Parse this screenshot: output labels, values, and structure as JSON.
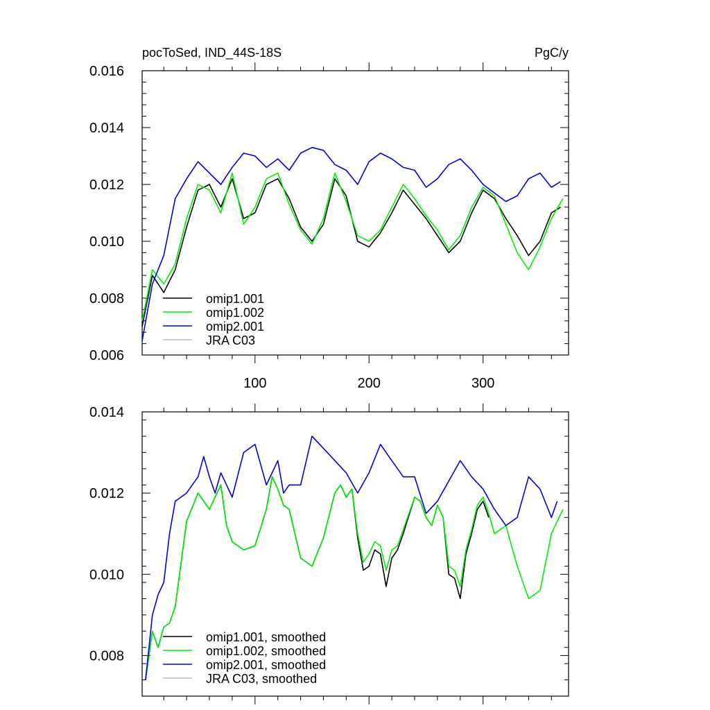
{
  "colors": {
    "omip1_001": "#000000",
    "omip1_002": "#00ee00",
    "omip2_001": "#0000dd",
    "jra_c03": "#bbbbbb"
  },
  "chart_data": [
    {
      "type": "line",
      "title_left": "pocToSed, IND_44S-18S",
      "title_right": "PgC/y",
      "xlim": [
        1,
        375
      ],
      "ylim": [
        0.006,
        0.016
      ],
      "yticks": [
        0.006,
        0.008,
        0.01,
        0.012,
        0.014,
        0.016
      ],
      "ytick_labels": [
        "0.006",
        "0.008",
        "0.010",
        "0.012",
        "0.014",
        "0.016"
      ],
      "xticks": [
        100,
        200,
        300
      ],
      "xtick_labels": [
        "100",
        "200",
        "300"
      ],
      "legend": [
        "omip1.001",
        "omip1.002",
        "omip2.001",
        "JRA C03"
      ],
      "series": [
        {
          "name": "omip1.001",
          "color": "#000000",
          "x": [
            1,
            10,
            20,
            30,
            40,
            50,
            60,
            70,
            80,
            90,
            100,
            110,
            120,
            130,
            140,
            150,
            160,
            170,
            180,
            190,
            200,
            210,
            220,
            230,
            240,
            250,
            260,
            270,
            280,
            290,
            300,
            310,
            320,
            330,
            340,
            350,
            360,
            368
          ],
          "y": [
            0.007,
            0.0088,
            0.0082,
            0.009,
            0.0105,
            0.0118,
            0.012,
            0.0112,
            0.0122,
            0.0108,
            0.011,
            0.012,
            0.0122,
            0.0115,
            0.0105,
            0.01,
            0.0106,
            0.0122,
            0.0116,
            0.01,
            0.0098,
            0.0103,
            0.011,
            0.0118,
            0.0113,
            0.0108,
            0.0102,
            0.0096,
            0.01,
            0.011,
            0.0118,
            0.0115,
            0.0108,
            0.0102,
            0.0095,
            0.01,
            0.011,
            0.0112
          ]
        },
        {
          "name": "omip1.002",
          "color": "#00ee00",
          "x": [
            1,
            10,
            20,
            30,
            40,
            50,
            60,
            70,
            80,
            90,
            100,
            110,
            120,
            130,
            140,
            150,
            160,
            170,
            180,
            190,
            200,
            210,
            220,
            230,
            240,
            250,
            260,
            270,
            280,
            290,
            300,
            310,
            320,
            330,
            340,
            350,
            360,
            370
          ],
          "y": [
            0.0072,
            0.009,
            0.0085,
            0.0092,
            0.0108,
            0.012,
            0.0118,
            0.011,
            0.0124,
            0.0106,
            0.0112,
            0.0122,
            0.0124,
            0.0113,
            0.0104,
            0.0099,
            0.0108,
            0.0124,
            0.0114,
            0.0102,
            0.01,
            0.0104,
            0.0112,
            0.012,
            0.0115,
            0.0109,
            0.0104,
            0.0097,
            0.0102,
            0.0112,
            0.0119,
            0.0116,
            0.0106,
            0.0096,
            0.009,
            0.0098,
            0.0108,
            0.0115
          ]
        },
        {
          "name": "omip2.001",
          "color": "#0000dd",
          "x": [
            1,
            10,
            20,
            30,
            40,
            50,
            60,
            70,
            80,
            90,
            100,
            110,
            120,
            130,
            140,
            150,
            160,
            170,
            180,
            190,
            200,
            210,
            220,
            230,
            240,
            250,
            260,
            270,
            280,
            290,
            300,
            310,
            320,
            330,
            340,
            350,
            360,
            368
          ],
          "y": [
            0.0065,
            0.0085,
            0.0095,
            0.0115,
            0.0122,
            0.0128,
            0.0124,
            0.012,
            0.0126,
            0.0131,
            0.013,
            0.0126,
            0.0129,
            0.0125,
            0.0131,
            0.0133,
            0.0132,
            0.0127,
            0.0125,
            0.012,
            0.0128,
            0.0131,
            0.0129,
            0.0126,
            0.0125,
            0.0119,
            0.0122,
            0.0127,
            0.0129,
            0.0125,
            0.012,
            0.0117,
            0.0114,
            0.0116,
            0.0122,
            0.0124,
            0.0119,
            0.0121
          ]
        },
        {
          "name": "JRA C03",
          "color": "#bbbbbb",
          "x": [],
          "y": []
        }
      ]
    },
    {
      "type": "line",
      "xlim": [
        1,
        375
      ],
      "ylim": [
        0.007,
        0.014
      ],
      "yticks": [
        0.008,
        0.01,
        0.012,
        0.014
      ],
      "ytick_labels": [
        "0.008",
        "0.010",
        "0.012",
        "0.014"
      ],
      "xticks": [
        100,
        200,
        300
      ],
      "xtick_labels": [],
      "legend": [
        "omip1.001, smoothed",
        "omip1.002, smoothed",
        "omip2.001, smoothed",
        "JRA C03, smoothed"
      ],
      "series": [
        {
          "name": "omip1.001, smoothed",
          "color": "#000000",
          "x": [
            4,
            10,
            15,
            20,
            25,
            30,
            40,
            50,
            55,
            60,
            65,
            70,
            75,
            80,
            90,
            100,
            110,
            115,
            120,
            125,
            130,
            140,
            150,
            160,
            170,
            175,
            180,
            185,
            190,
            195,
            200,
            205,
            210,
            215,
            220,
            225,
            230,
            240,
            245,
            250,
            255,
            260,
            265,
            270,
            275,
            280,
            285,
            290,
            295,
            300,
            305
          ],
          "y": [
            0.0074,
            0.0086,
            0.0082,
            0.0087,
            0.0088,
            0.0092,
            0.0113,
            0.012,
            0.0118,
            0.0116,
            0.0119,
            0.0122,
            0.0112,
            0.0108,
            0.0106,
            0.0107,
            0.0116,
            0.0124,
            0.0121,
            0.0117,
            0.0116,
            0.0104,
            0.0102,
            0.0109,
            0.012,
            0.0122,
            0.0119,
            0.0121,
            0.0109,
            0.0101,
            0.0102,
            0.0106,
            0.0105,
            0.0097,
            0.0104,
            0.0106,
            0.011,
            0.0119,
            0.0118,
            0.0114,
            0.0112,
            0.0117,
            0.0114,
            0.01,
            0.0099,
            0.0094,
            0.0105,
            0.011,
            0.0116,
            0.0118,
            0.0114
          ]
        },
        {
          "name": "omip1.002, smoothed",
          "color": "#00ee00",
          "x": [
            4,
            10,
            15,
            20,
            25,
            30,
            40,
            50,
            55,
            60,
            65,
            70,
            75,
            80,
            90,
            100,
            110,
            115,
            120,
            125,
            130,
            140,
            150,
            160,
            170,
            175,
            180,
            185,
            190,
            195,
            200,
            205,
            210,
            215,
            220,
            225,
            230,
            240,
            245,
            250,
            255,
            260,
            265,
            270,
            275,
            280,
            285,
            290,
            295,
            300,
            305,
            310,
            320,
            330,
            340,
            350,
            360,
            370
          ],
          "y": [
            0.0074,
            0.0086,
            0.0082,
            0.0087,
            0.0088,
            0.0092,
            0.0113,
            0.012,
            0.0118,
            0.0116,
            0.0119,
            0.0122,
            0.0112,
            0.0108,
            0.0106,
            0.0107,
            0.0116,
            0.0124,
            0.0121,
            0.0117,
            0.0116,
            0.0104,
            0.0102,
            0.0109,
            0.012,
            0.0122,
            0.0119,
            0.0121,
            0.011,
            0.0103,
            0.0105,
            0.0108,
            0.0107,
            0.0101,
            0.0106,
            0.0107,
            0.0111,
            0.0119,
            0.0118,
            0.0114,
            0.0112,
            0.0117,
            0.0114,
            0.0102,
            0.0101,
            0.0097,
            0.0106,
            0.0111,
            0.0117,
            0.0119,
            0.0115,
            0.011,
            0.0112,
            0.0102,
            0.0094,
            0.0096,
            0.011,
            0.0116
          ]
        },
        {
          "name": "omip2.001, smoothed",
          "color": "#0000dd",
          "x": [
            4,
            10,
            15,
            20,
            25,
            30,
            40,
            50,
            55,
            60,
            65,
            70,
            80,
            90,
            100,
            110,
            120,
            125,
            130,
            140,
            150,
            160,
            170,
            180,
            190,
            200,
            210,
            220,
            230,
            240,
            250,
            260,
            270,
            280,
            290,
            300,
            310,
            320,
            330,
            340,
            350,
            360,
            365
          ],
          "y": [
            0.0074,
            0.009,
            0.0095,
            0.0098,
            0.011,
            0.0118,
            0.012,
            0.0124,
            0.0129,
            0.0124,
            0.012,
            0.0125,
            0.0119,
            0.013,
            0.0132,
            0.0122,
            0.0128,
            0.012,
            0.0122,
            0.0122,
            0.0134,
            0.0131,
            0.0128,
            0.0125,
            0.012,
            0.0125,
            0.0132,
            0.0128,
            0.0124,
            0.0124,
            0.0115,
            0.0118,
            0.0123,
            0.0128,
            0.0124,
            0.0121,
            0.0116,
            0.0112,
            0.0114,
            0.0124,
            0.0121,
            0.0114,
            0.0118
          ]
        },
        {
          "name": "JRA C03, smoothed",
          "color": "#bbbbbb",
          "x": [],
          "y": []
        }
      ]
    }
  ]
}
